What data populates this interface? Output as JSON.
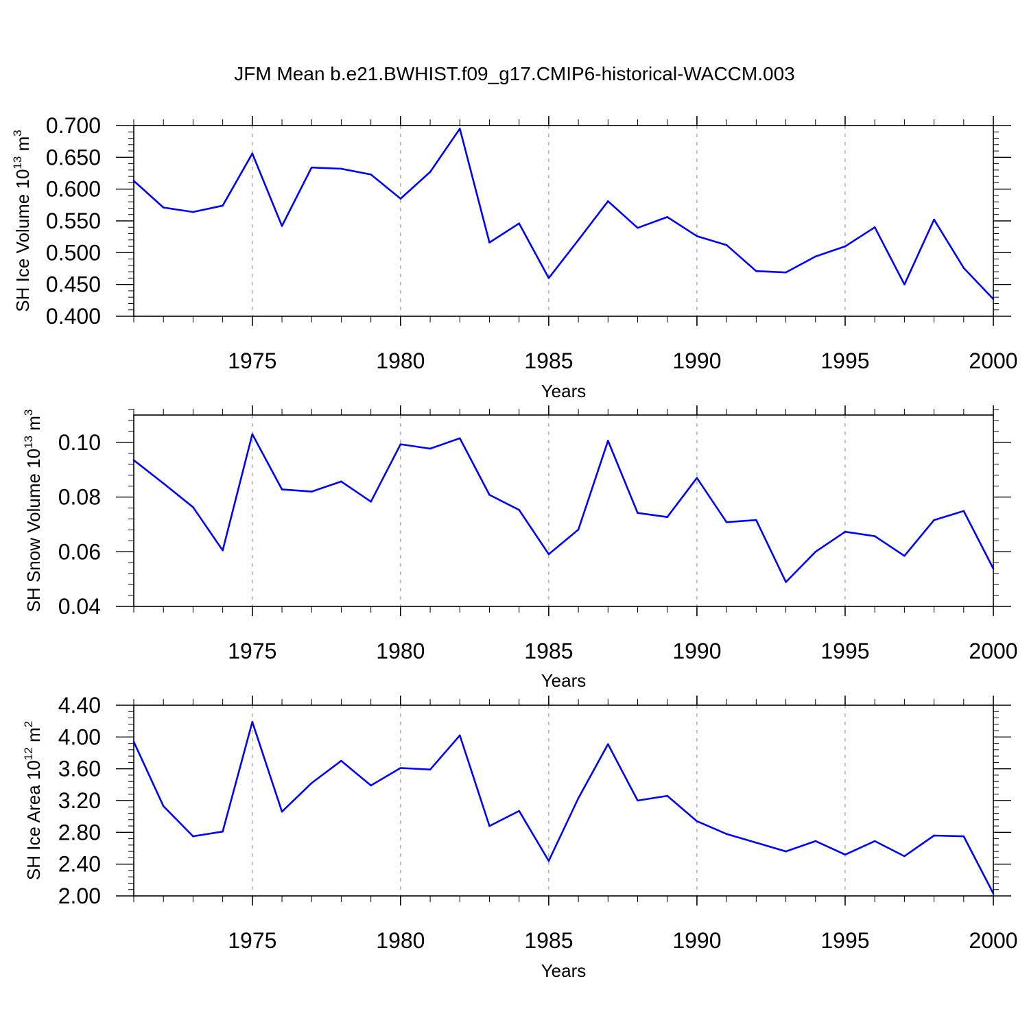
{
  "title": "JFM Mean b.e21.BWHIST.f09_g17.CMIP6-historical-WACCM.003",
  "colors": {
    "line": "#0000ff",
    "grid": "#999999",
    "axis": "#000000"
  },
  "chart_data": [
    {
      "type": "line",
      "xlabel": "Years",
      "ylabel": {
        "prefix": "SH Ice Volume 10",
        "exp": "13",
        "unit": " m",
        "unit_exp": "3"
      },
      "xlim": [
        1971,
        2000
      ],
      "ylim": [
        0.4,
        0.7
      ],
      "xticks": [
        1975,
        1980,
        1985,
        1990,
        1995,
        2000
      ],
      "xtick_labels": [
        "1975",
        "1980",
        "1985",
        "1990",
        "1995",
        "2000"
      ],
      "yticks": [
        0.4,
        0.45,
        0.5,
        0.55,
        0.6,
        0.65,
        0.7
      ],
      "ytick_labels": [
        "0.400",
        "0.450",
        "0.500",
        "0.550",
        "0.600",
        "0.650",
        "0.700"
      ],
      "yminor": 0.01,
      "grid": "vertical dashed at major x ticks",
      "x": [
        1971,
        1972,
        1973,
        1974,
        1975,
        1976,
        1977,
        1978,
        1979,
        1980,
        1981,
        1982,
        1983,
        1984,
        1985,
        1986,
        1987,
        1988,
        1989,
        1990,
        1991,
        1992,
        1993,
        1994,
        1995,
        1996,
        1997,
        1998,
        1999,
        2000
      ],
      "values": [
        0.613,
        0.571,
        0.564,
        0.574,
        0.656,
        0.542,
        0.634,
        0.632,
        0.623,
        0.585,
        0.627,
        0.695,
        0.516,
        0.546,
        0.46,
        0.52,
        0.581,
        0.539,
        0.556,
        0.526,
        0.512,
        0.471,
        0.469,
        0.494,
        0.51,
        0.54,
        0.45,
        0.552,
        0.476,
        0.427
      ]
    },
    {
      "type": "line",
      "xlabel": "Years",
      "ylabel": {
        "prefix": "SH Snow Volume 10",
        "exp": "13",
        "unit": " m",
        "unit_exp": "3"
      },
      "xlim": [
        1971,
        2000
      ],
      "ylim": [
        0.04,
        0.11
      ],
      "xticks": [
        1975,
        1980,
        1985,
        1990,
        1995,
        2000
      ],
      "xtick_labels": [
        "1975",
        "1980",
        "1985",
        "1990",
        "1995",
        "2000"
      ],
      "yticks": [
        0.04,
        0.06,
        0.08,
        0.1
      ],
      "ytick_labels": [
        "0.04",
        "0.06",
        "0.08",
        "0.10"
      ],
      "yminor": 0.004,
      "grid": "vertical dashed at major x ticks",
      "x": [
        1971,
        1972,
        1973,
        1974,
        1975,
        1976,
        1977,
        1978,
        1979,
        1980,
        1981,
        1982,
        1983,
        1984,
        1985,
        1986,
        1987,
        1988,
        1989,
        1990,
        1991,
        1992,
        1993,
        1994,
        1995,
        1996,
        1997,
        1998,
        1999,
        2000
      ],
      "values": [
        0.0935,
        0.085,
        0.0763,
        0.0605,
        0.103,
        0.0828,
        0.082,
        0.0857,
        0.0783,
        0.0993,
        0.0977,
        0.1015,
        0.0808,
        0.0753,
        0.0591,
        0.0681,
        0.1006,
        0.0742,
        0.0727,
        0.087,
        0.0708,
        0.0716,
        0.0489,
        0.06,
        0.0673,
        0.0657,
        0.0585,
        0.0716,
        0.0749,
        0.0538
      ]
    },
    {
      "type": "line",
      "xlabel": "Years",
      "ylabel": {
        "prefix": "SH Ice Area 10",
        "exp": "12",
        "unit": " m",
        "unit_exp": "2"
      },
      "xlim": [
        1971,
        2000
      ],
      "ylim": [
        2.0,
        4.4
      ],
      "xticks": [
        1975,
        1980,
        1985,
        1990,
        1995,
        2000
      ],
      "xtick_labels": [
        "1975",
        "1980",
        "1985",
        "1990",
        "1995",
        "2000"
      ],
      "yticks": [
        2.0,
        2.4,
        2.8,
        3.2,
        3.6,
        4.0,
        4.4
      ],
      "ytick_labels": [
        "2.00",
        "2.40",
        "2.80",
        "3.20",
        "3.60",
        "4.00",
        "4.40"
      ],
      "yminor": 0.08,
      "grid": "vertical dashed at major x ticks",
      "x": [
        1971,
        1972,
        1973,
        1974,
        1975,
        1976,
        1977,
        1978,
        1979,
        1980,
        1981,
        1982,
        1983,
        1984,
        1985,
        1986,
        1987,
        1988,
        1989,
        1990,
        1991,
        1992,
        1993,
        1994,
        1995,
        1996,
        1997,
        1998,
        1999,
        2000
      ],
      "values": [
        3.94,
        3.13,
        2.75,
        2.81,
        4.19,
        3.06,
        3.42,
        3.7,
        3.39,
        3.61,
        3.59,
        4.02,
        2.88,
        3.07,
        2.44,
        3.23,
        3.91,
        3.2,
        3.26,
        2.94,
        2.78,
        2.67,
        2.56,
        2.69,
        2.52,
        2.69,
        2.5,
        2.76,
        2.75,
        2.03
      ]
    }
  ]
}
